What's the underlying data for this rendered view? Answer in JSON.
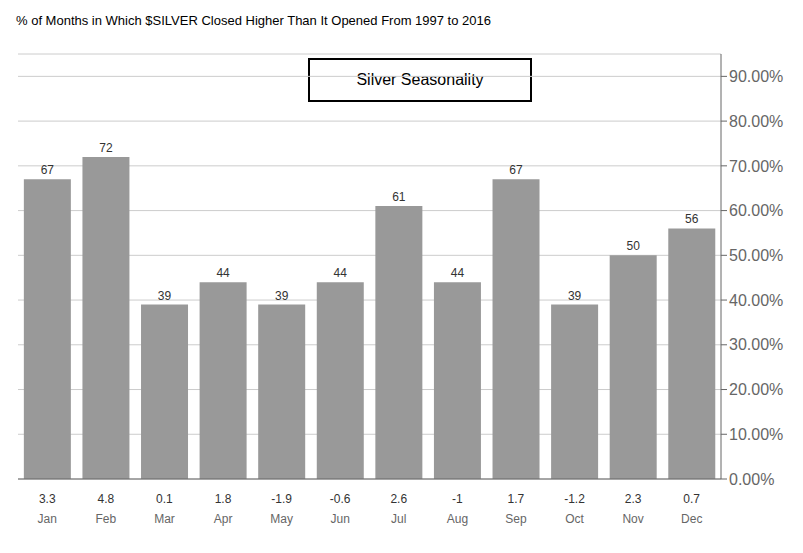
{
  "chart_data": {
    "type": "bar",
    "title": "% of Months in Which $SILVER Closed Higher Than It Opened From 1997 to 2016",
    "annotations": [
      "Silver Seasonality"
    ],
    "categories": [
      "Jan",
      "Feb",
      "Mar",
      "Apr",
      "May",
      "Jun",
      "Jul",
      "Aug",
      "Sep",
      "Oct",
      "Nov",
      "Dec"
    ],
    "values": [
      67,
      72,
      39,
      44,
      39,
      44,
      61,
      44,
      67,
      39,
      50,
      56
    ],
    "avg_values": [
      3.3,
      4.8,
      0.1,
      1.8,
      -1.9,
      -0.6,
      2.6,
      -1.0,
      1.7,
      -1.2,
      2.3,
      0.7
    ],
    "color": "#999999",
    "ylim": [
      0,
      95
    ],
    "yticks": [
      {
        "value": 0,
        "label": "0.00%"
      },
      {
        "value": 10,
        "label": "10.00%"
      },
      {
        "value": 20,
        "label": "20.00%"
      },
      {
        "value": 30,
        "label": "30.00%"
      },
      {
        "value": 40,
        "label": "40.00%"
      },
      {
        "value": 50,
        "label": "50.00%"
      },
      {
        "value": 60,
        "label": "60.00%"
      },
      {
        "value": 70,
        "label": "70.00%"
      },
      {
        "value": 80,
        "label": "80.00%"
      },
      {
        "value": 90,
        "label": "90.00%"
      }
    ],
    "grid": true,
    "data_labels": true
  }
}
